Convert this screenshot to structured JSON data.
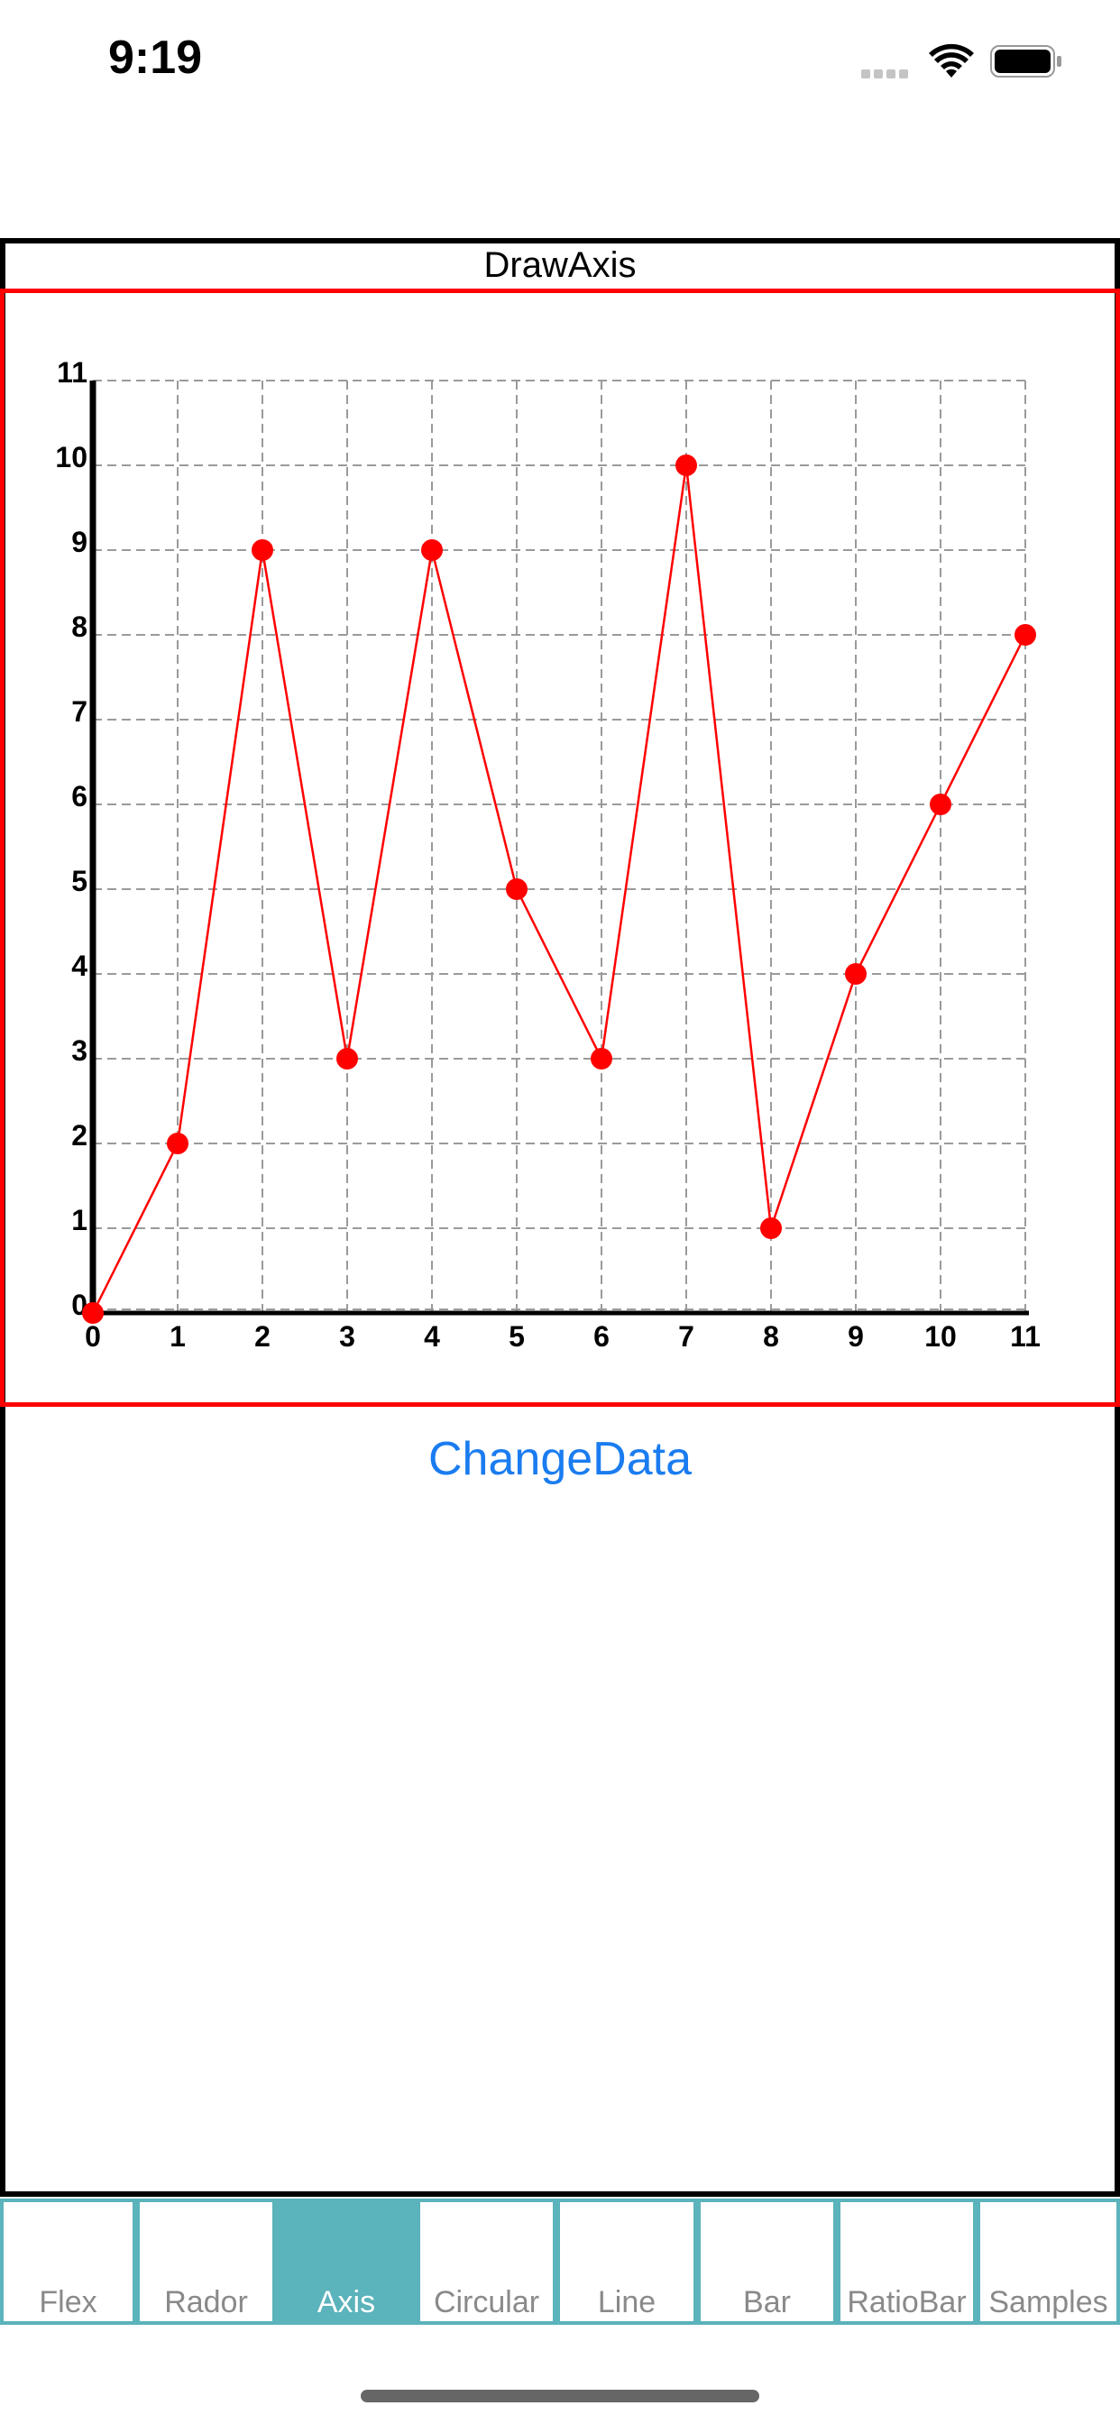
{
  "status_bar": {
    "time": "9:19"
  },
  "screen": {
    "title": "DrawAxis"
  },
  "chart_data": {
    "type": "line",
    "x": [
      0,
      1,
      2,
      3,
      4,
      5,
      6,
      7,
      8,
      9,
      10,
      11
    ],
    "values": [
      0,
      2,
      9,
      3,
      9,
      5,
      3,
      10,
      1,
      4,
      6,
      8
    ],
    "xticks": [
      "0",
      "1",
      "2",
      "3",
      "4",
      "5",
      "6",
      "7",
      "8",
      "9",
      "10",
      "11"
    ],
    "yticks": [
      "0",
      "1",
      "2",
      "3",
      "4",
      "5",
      "6",
      "7",
      "8",
      "9",
      "10",
      "11"
    ],
    "xlim": [
      0,
      11
    ],
    "ylim": [
      0,
      11
    ],
    "grid": true,
    "grid_style": "dashed",
    "line_color": "#ff0000",
    "marker_color": "#ff0000"
  },
  "actions": {
    "change_data_label": "ChangeData"
  },
  "tabs": [
    {
      "label": "Flex",
      "active": false
    },
    {
      "label": "Rador",
      "active": false
    },
    {
      "label": "Axis",
      "active": true
    },
    {
      "label": "Circular",
      "active": false
    },
    {
      "label": "Line",
      "active": false
    },
    {
      "label": "Bar",
      "active": false
    },
    {
      "label": "RatioBar",
      "active": false
    },
    {
      "label": "Samples",
      "active": false
    }
  ],
  "colors": {
    "accent_link": "#1a7cf0",
    "tab_active": "#5bb3bb",
    "chart_frame": "#ff0000"
  }
}
